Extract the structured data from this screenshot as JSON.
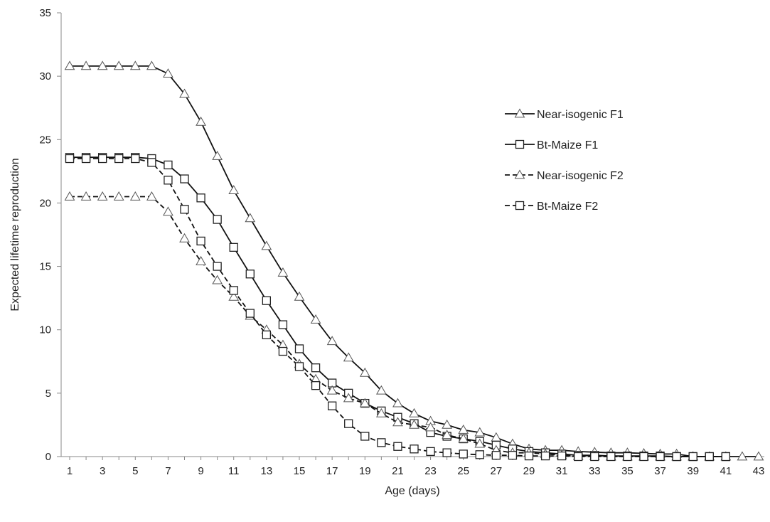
{
  "chart_data": {
    "type": "line",
    "xlabel": "Age (days)",
    "ylabel": "Expected lifetime reproduction",
    "xlim": [
      1,
      43
    ],
    "ylim": [
      0,
      35
    ],
    "y_ticks": [
      0,
      5,
      10,
      15,
      20,
      25,
      30,
      35
    ],
    "x_tick_labels": [
      1,
      3,
      5,
      7,
      9,
      11,
      13,
      15,
      17,
      19,
      21,
      23,
      25,
      27,
      29,
      31,
      33,
      35,
      37,
      39,
      41,
      43
    ],
    "grid": false,
    "legend_position": "right",
    "series": [
      {
        "name": "Near-isogenic F1",
        "marker": "triangle",
        "line_style": "solid",
        "x": [
          1,
          2,
          3,
          4,
          5,
          6,
          7,
          8,
          9,
          10,
          11,
          12,
          13,
          14,
          15,
          16,
          17,
          18,
          19,
          20,
          21,
          22,
          23,
          24,
          25,
          26,
          27,
          28,
          29,
          30,
          31,
          32,
          33,
          34,
          35,
          36,
          37,
          38,
          39,
          40,
          41,
          42,
          43
        ],
        "values": [
          30.8,
          30.8,
          30.8,
          30.8,
          30.8,
          30.8,
          30.2,
          28.6,
          26.4,
          23.7,
          21.0,
          18.8,
          16.6,
          14.5,
          12.6,
          10.8,
          9.1,
          7.8,
          6.6,
          5.2,
          4.2,
          3.4,
          2.8,
          2.5,
          2.1,
          1.9,
          1.5,
          1.0,
          0.6,
          0.5,
          0.5,
          0.4,
          0.35,
          0.3,
          0.3,
          0.25,
          0.2,
          0.2,
          0.0,
          0.0,
          0.0,
          0.0,
          0.0
        ]
      },
      {
        "name": "Bt-Maize F1",
        "marker": "square",
        "line_style": "solid",
        "x": [
          1,
          2,
          3,
          4,
          5,
          6,
          7,
          8,
          9,
          10,
          11,
          12,
          13,
          14,
          15,
          16,
          17,
          18,
          19,
          20,
          21,
          22,
          23,
          24,
          25,
          26,
          27,
          28,
          29,
          30,
          31,
          32,
          33,
          34,
          35,
          36,
          37,
          38,
          39,
          40,
          41
        ],
        "values": [
          23.6,
          23.6,
          23.6,
          23.6,
          23.6,
          23.5,
          23.0,
          21.9,
          20.4,
          18.7,
          16.5,
          14.4,
          12.3,
          10.4,
          8.5,
          7.0,
          5.8,
          5.0,
          4.2,
          3.6,
          3.1,
          2.6,
          1.9,
          1.6,
          1.4,
          1.2,
          0.9,
          0.6,
          0.4,
          0.3,
          0.2,
          0.1,
          0.1,
          0.05,
          0.05,
          0.05,
          0.05,
          0.0,
          0.0,
          0.0,
          0.0
        ]
      },
      {
        "name": "Near-isogenic F2",
        "marker": "triangle",
        "line_style": "dashed",
        "x": [
          1,
          2,
          3,
          4,
          5,
          6,
          7,
          8,
          9,
          10,
          11,
          12,
          13,
          14,
          15,
          16,
          17,
          18,
          19,
          20,
          21,
          22,
          23,
          24,
          25,
          26,
          27,
          28,
          29,
          30,
          31,
          32,
          33,
          34,
          35,
          36,
          37,
          38,
          39
        ],
        "values": [
          20.5,
          20.5,
          20.5,
          20.5,
          20.5,
          20.5,
          19.3,
          17.2,
          15.4,
          13.9,
          12.6,
          11.1,
          10.0,
          8.8,
          7.3,
          6.1,
          5.2,
          4.6,
          4.2,
          3.4,
          2.7,
          2.5,
          2.3,
          1.7,
          1.4,
          1.0,
          0.5,
          0.3,
          0.3,
          0.2,
          0.1,
          0.05,
          0.05,
          0.0,
          0.0,
          0.0,
          0.0,
          0.0,
          0.0
        ]
      },
      {
        "name": "Bt-Maize F2",
        "marker": "square",
        "line_style": "dashed",
        "x": [
          1,
          2,
          3,
          4,
          5,
          6,
          7,
          8,
          9,
          10,
          11,
          12,
          13,
          14,
          15,
          16,
          17,
          18,
          19,
          20,
          21,
          22,
          23,
          24,
          25,
          26,
          27,
          28,
          29,
          30,
          31,
          32,
          33,
          34,
          35,
          36,
          37,
          38,
          39,
          40,
          41
        ],
        "values": [
          23.5,
          23.5,
          23.5,
          23.5,
          23.5,
          23.2,
          21.8,
          19.5,
          17.0,
          15.0,
          13.1,
          11.3,
          9.6,
          8.3,
          7.1,
          5.6,
          4.0,
          2.6,
          1.6,
          1.1,
          0.8,
          0.6,
          0.4,
          0.3,
          0.2,
          0.15,
          0.1,
          0.1,
          0.05,
          0.05,
          0.05,
          0.0,
          0.0,
          0.0,
          0.0,
          0.0,
          0.0,
          0.0,
          0.0,
          0.0,
          0.0
        ]
      }
    ]
  }
}
